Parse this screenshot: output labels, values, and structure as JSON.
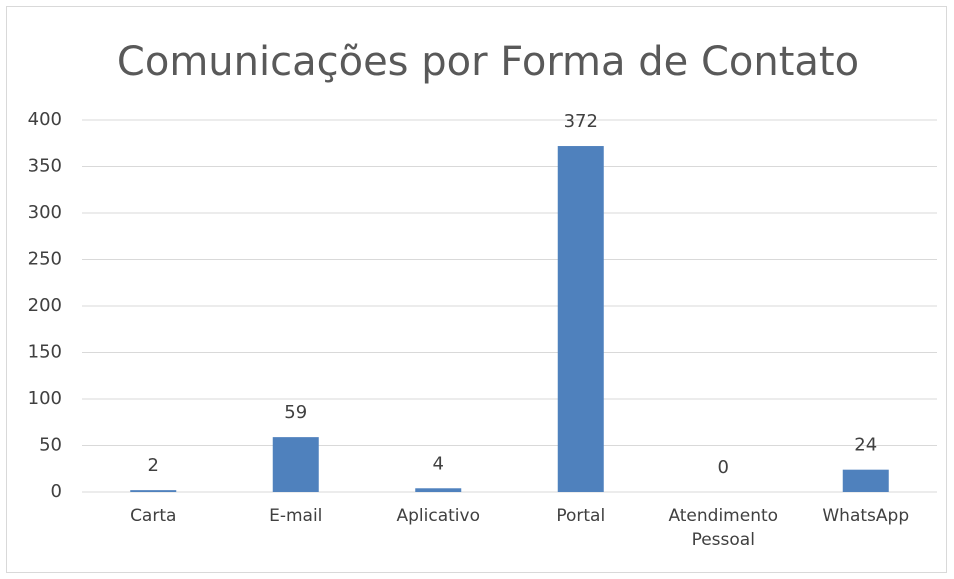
{
  "chart_data": {
    "type": "bar",
    "title": "Comunicações por Forma de Contato",
    "categories": [
      "Carta",
      "E-mail",
      "Aplicativo",
      "Portal",
      "Atendimento Pessoal",
      "WhatsApp"
    ],
    "values": [
      2,
      59,
      4,
      372,
      0,
      24
    ],
    "color": "#4f81bd",
    "ylim": [
      0,
      400
    ],
    "yticks": [
      0,
      50,
      100,
      150,
      200,
      250,
      300,
      350,
      400
    ],
    "grid": true
  }
}
